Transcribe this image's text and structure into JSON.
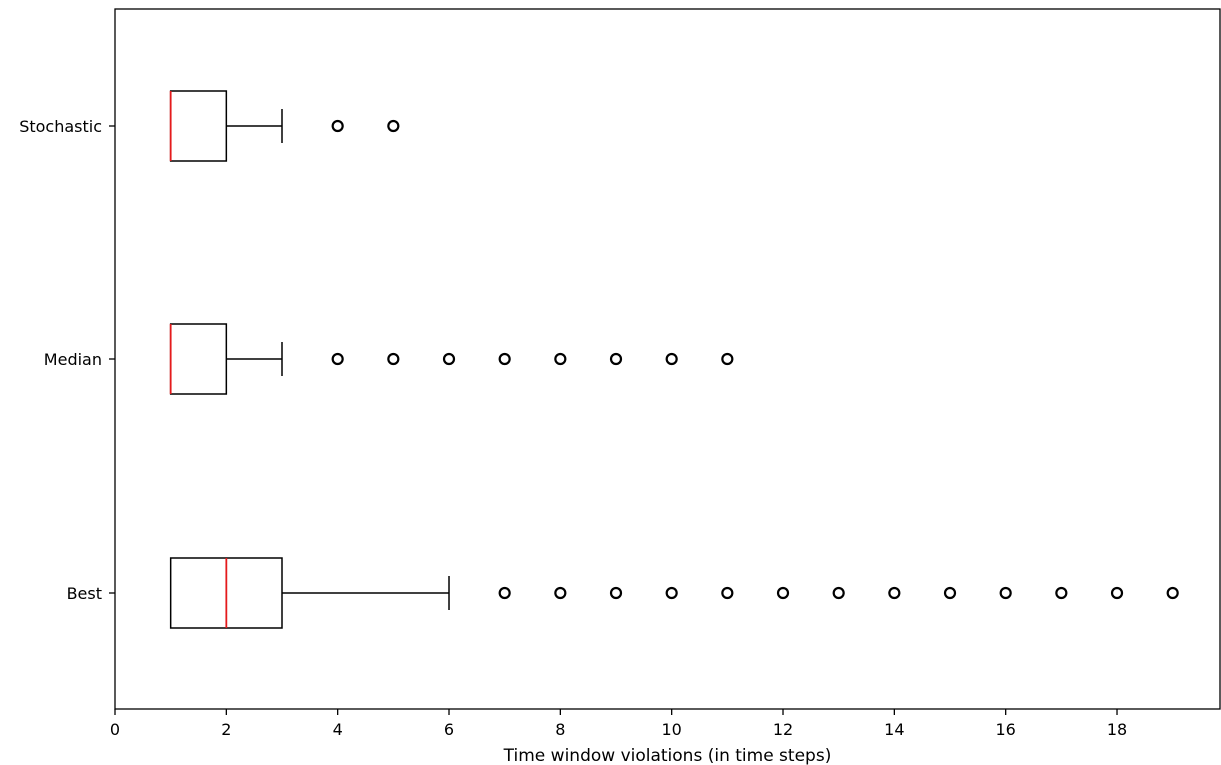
{
  "chart_data": {
    "type": "box",
    "orientation": "horizontal",
    "title": "",
    "xlabel": "Time window violations (in time steps)",
    "ylabel": "",
    "xlim": [
      0,
      19.85
    ],
    "xticks": [
      0,
      2,
      4,
      6,
      8,
      10,
      12,
      14,
      16,
      18
    ],
    "grid": false,
    "legend": "none",
    "colors": {
      "box": "#000000",
      "median": "#e41a1c",
      "outlier": "#000000"
    },
    "series": [
      {
        "label": "Stochastic",
        "whisker_low": 1,
        "q1": 1,
        "median": 1,
        "q3": 2,
        "whisker_high": 3,
        "outliers": [
          4,
          5
        ]
      },
      {
        "label": "Median",
        "whisker_low": 1,
        "q1": 1,
        "median": 1,
        "q3": 2,
        "whisker_high": 3,
        "outliers": [
          4,
          5,
          6,
          7,
          8,
          9,
          10,
          11
        ]
      },
      {
        "label": "Best",
        "whisker_low": 1,
        "q1": 1,
        "median": 2,
        "q3": 3,
        "whisker_high": 6,
        "outliers": [
          7,
          8,
          9,
          10,
          11,
          12,
          13,
          14,
          15,
          16,
          17,
          18,
          19
        ]
      }
    ]
  }
}
